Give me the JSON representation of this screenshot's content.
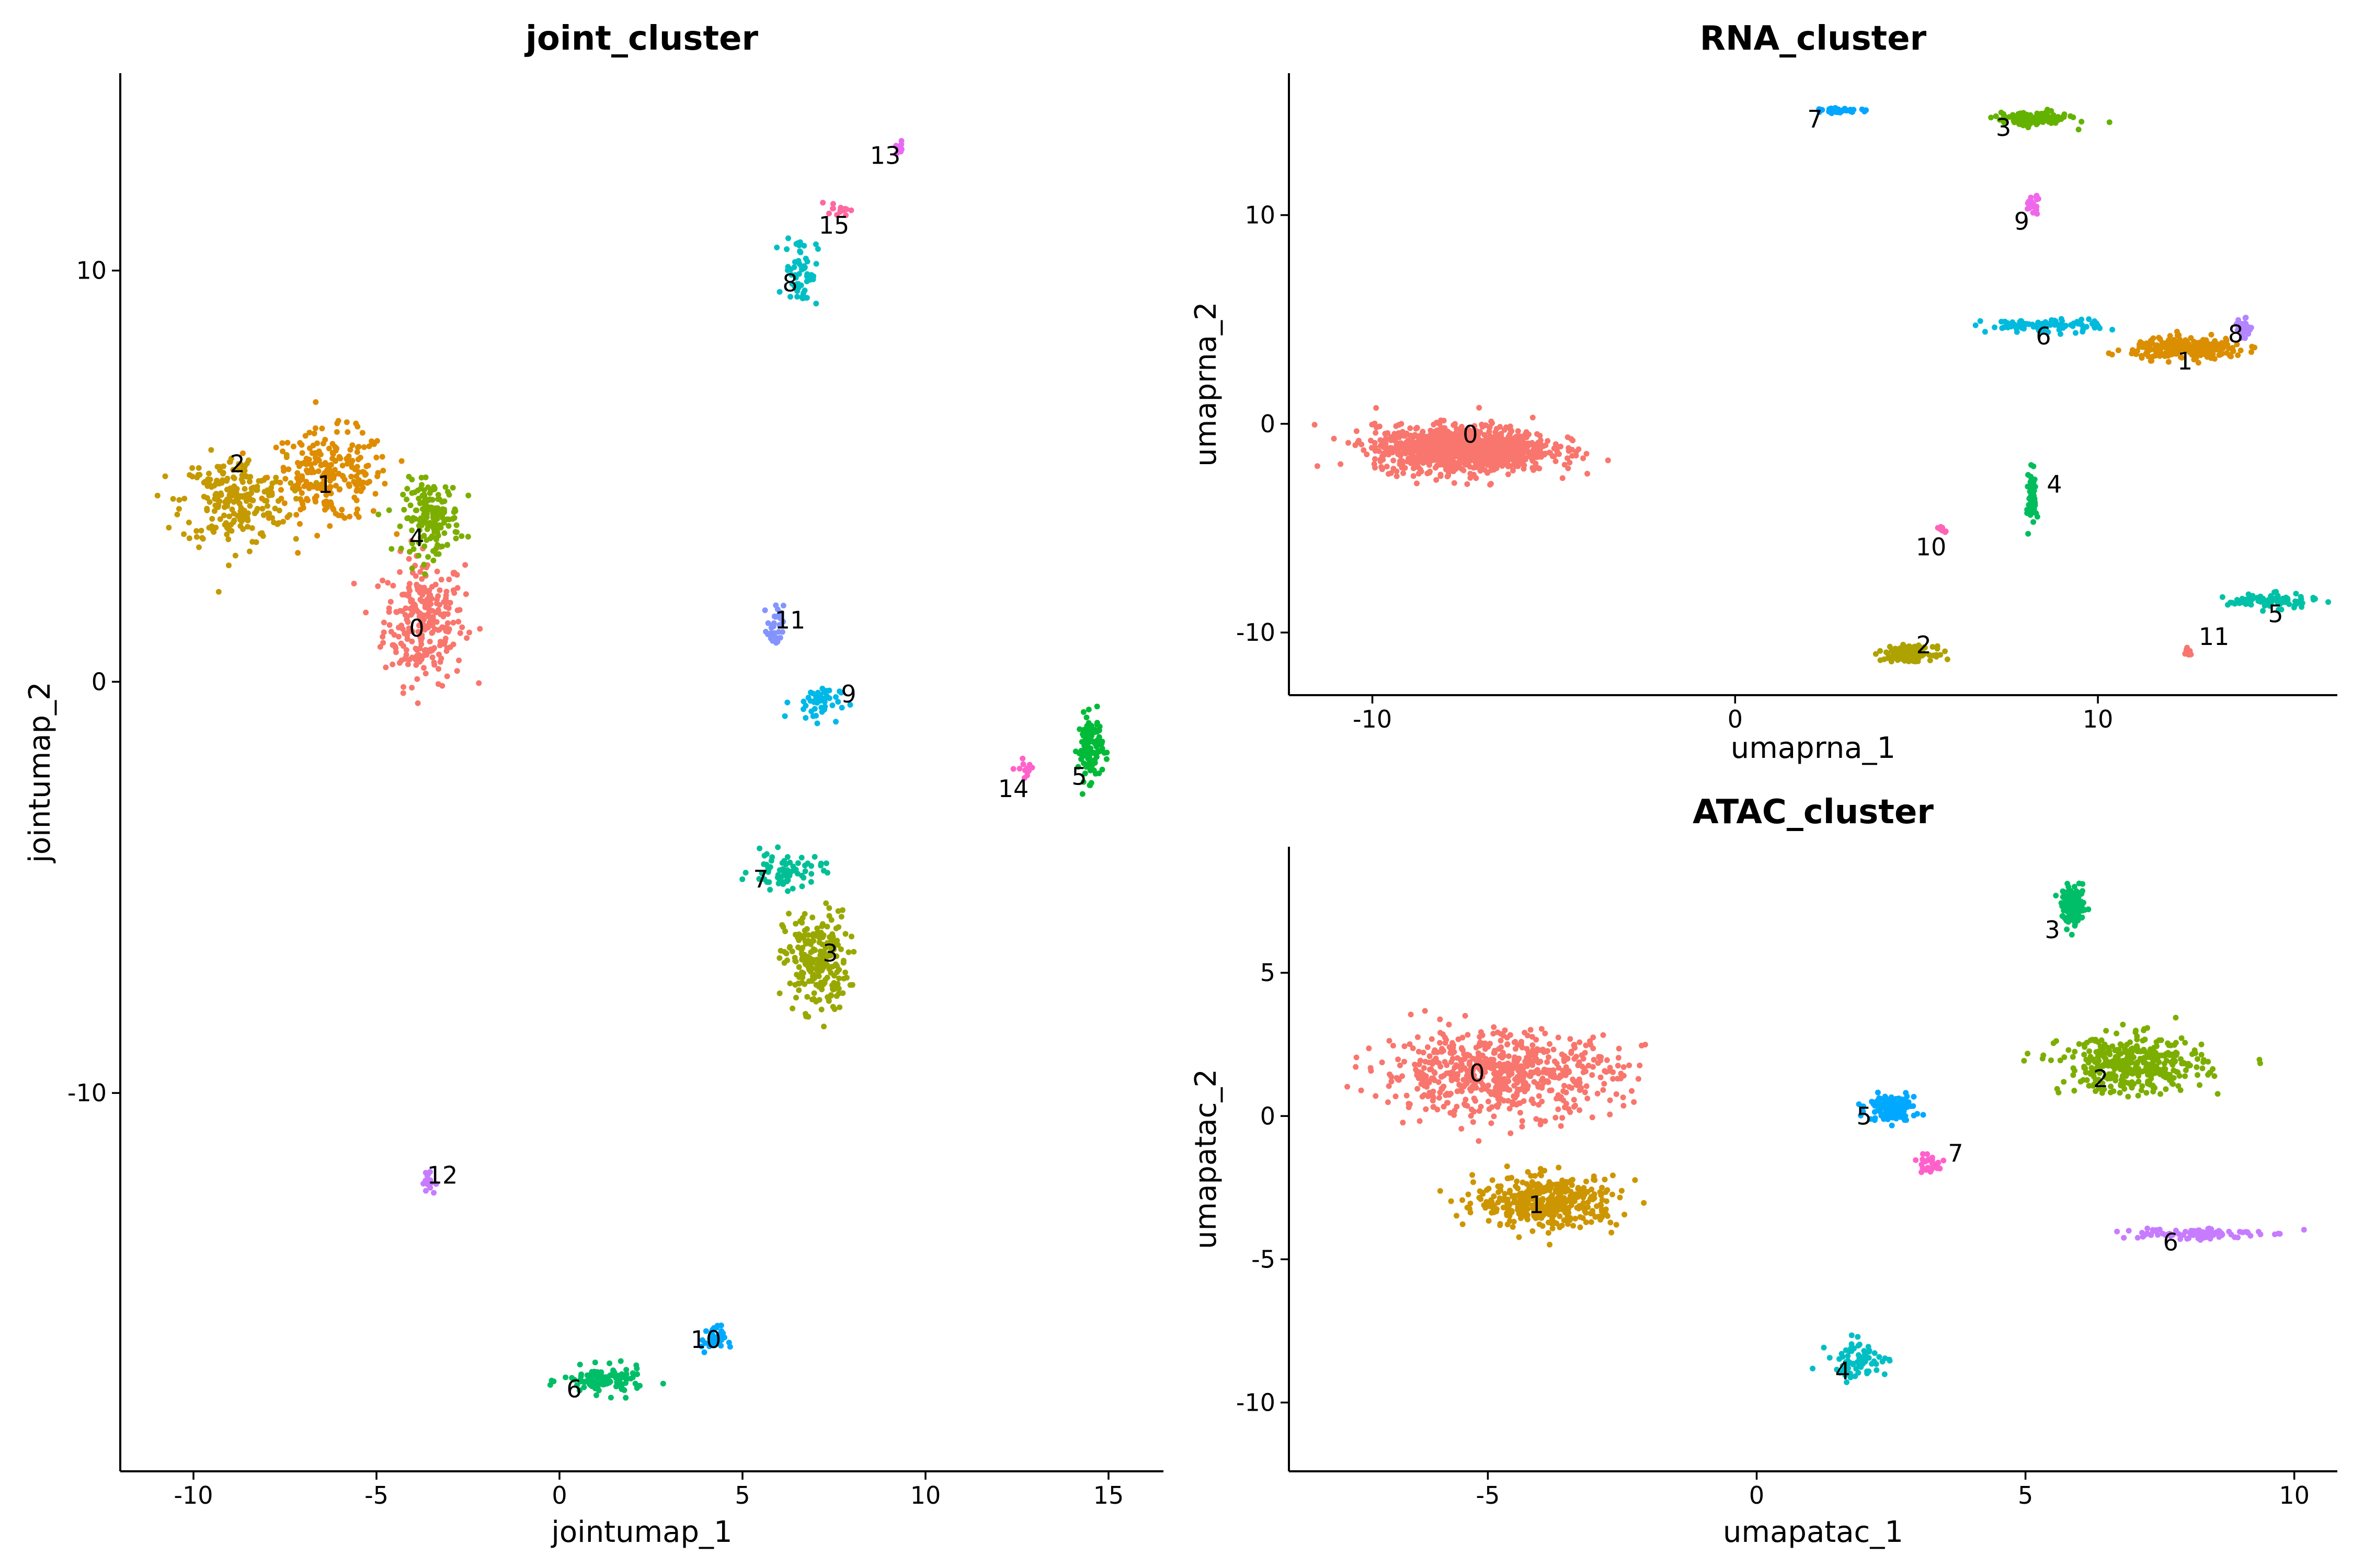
{
  "chart_data": [
    {
      "type": "scatter",
      "title": "joint_cluster",
      "xlabel": "jointumap_1",
      "ylabel": "jointumap_2",
      "xlim": [
        -12,
        16.5
      ],
      "ylim": [
        -19.2,
        14.8
      ],
      "xticks": [
        -10,
        -5,
        0,
        5,
        10,
        15
      ],
      "xtick_labels": [
        "-10",
        "-5",
        "0",
        "5",
        "10",
        "15"
      ],
      "yticks": [
        -10,
        0,
        10
      ],
      "ytick_labels": [
        "-10",
        "0",
        "10"
      ],
      "grid": false,
      "legend": "none",
      "clusters": [
        {
          "label": "0",
          "label_x": -3.9,
          "label_y": 1.3,
          "color": "#F8766D",
          "centroid": [
            -3.7,
            1.5
          ],
          "spread": [
            1.0,
            1.4
          ],
          "count": 260
        },
        {
          "label": "1",
          "label_x": -6.4,
          "label_y": 4.8,
          "color": "#DE8C00",
          "centroid": [
            -6.3,
            5.0
          ],
          "spread": [
            1.5,
            1.0
          ],
          "count": 240
        },
        {
          "label": "2",
          "label_x": -8.8,
          "label_y": 5.3,
          "color": "#C49A00",
          "centroid": [
            -8.9,
            4.4
          ],
          "spread": [
            1.3,
            1.0
          ],
          "count": 220
        },
        {
          "label": "3",
          "label_x": 7.4,
          "label_y": -6.6,
          "color": "#99A800",
          "centroid": [
            7.0,
            -6.8
          ],
          "spread": [
            0.8,
            1.1
          ],
          "count": 230
        },
        {
          "label": "4",
          "label_x": -3.9,
          "label_y": 3.5,
          "color": "#7CAE00",
          "centroid": [
            -3.5,
            4.0
          ],
          "spread": [
            0.7,
            0.8
          ],
          "count": 160
        },
        {
          "label": "5",
          "label_x": 14.2,
          "label_y": -2.3,
          "color": "#00BA38",
          "centroid": [
            14.5,
            -1.6
          ],
          "spread": [
            0.3,
            0.7
          ],
          "count": 120
        },
        {
          "label": "6",
          "label_x": 0.4,
          "label_y": -17.2,
          "color": "#00BE67",
          "centroid": [
            1.2,
            -17.0
          ],
          "spread": [
            1.0,
            0.3
          ],
          "count": 110
        },
        {
          "label": "7",
          "label_x": 5.5,
          "label_y": -4.8,
          "color": "#00BF96",
          "centroid": [
            6.2,
            -4.6
          ],
          "spread": [
            0.9,
            0.4
          ],
          "count": 70
        },
        {
          "label": "8",
          "label_x": 6.3,
          "label_y": 9.7,
          "color": "#00BFC4",
          "centroid": [
            6.6,
            10.0
          ],
          "spread": [
            0.4,
            0.8
          ],
          "count": 60
        },
        {
          "label": "9",
          "label_x": 7.9,
          "label_y": -0.3,
          "color": "#00B8E7",
          "centroid": [
            7.0,
            -0.5
          ],
          "spread": [
            0.6,
            0.4
          ],
          "count": 45
        },
        {
          "label": "10",
          "label_x": 4.0,
          "label_y": -16.0,
          "color": "#00A9FF",
          "centroid": [
            4.2,
            -16.0
          ],
          "spread": [
            0.3,
            0.3
          ],
          "count": 35
        },
        {
          "label": "11",
          "label_x": 6.3,
          "label_y": 1.5,
          "color": "#8494FF",
          "centroid": [
            5.9,
            1.3
          ],
          "spread": [
            0.2,
            0.5
          ],
          "count": 30
        },
        {
          "label": "12",
          "label_x": -3.2,
          "label_y": -12.0,
          "color": "#C77CFF",
          "centroid": [
            -3.6,
            -12.2
          ],
          "spread": [
            0.2,
            0.3
          ],
          "count": 14
        },
        {
          "label": "13",
          "label_x": 8.9,
          "label_y": 12.8,
          "color": "#E76BF3",
          "centroid": [
            9.3,
            13.0
          ],
          "spread": [
            0.1,
            0.2
          ],
          "count": 10
        },
        {
          "label": "14",
          "label_x": 12.4,
          "label_y": -2.6,
          "color": "#FF61CC",
          "centroid": [
            12.8,
            -2.1
          ],
          "spread": [
            0.3,
            0.2
          ],
          "count": 14
        },
        {
          "label": "15",
          "label_x": 7.5,
          "label_y": 11.1,
          "color": "#FF68A1",
          "centroid": [
            7.6,
            11.5
          ],
          "spread": [
            0.3,
            0.15
          ],
          "count": 16
        }
      ]
    },
    {
      "type": "scatter",
      "title": "RNA_cluster",
      "xlabel": "umaprna_1",
      "ylabel": "umaprna_2",
      "xlim": [
        -12.3,
        16.6
      ],
      "ylim": [
        -13.0,
        16.8
      ],
      "xticks": [
        -10,
        0,
        10
      ],
      "xtick_labels": [
        "-10",
        "0",
        "10"
      ],
      "yticks": [
        -10,
        0,
        10
      ],
      "ytick_labels": [
        "-10",
        "0",
        "10"
      ],
      "grid": false,
      "legend": "none",
      "clusters": [
        {
          "label": "0",
          "label_x": -7.3,
          "label_y": -0.5,
          "color": "#F8766D",
          "centroid": [
            -7.5,
            -1.2
          ],
          "spread": [
            2.2,
            1.0
          ],
          "count": 1100
        },
        {
          "label": "1",
          "label_x": 12.4,
          "label_y": 3.0,
          "color": "#DB8E00",
          "centroid": [
            12.5,
            3.6
          ],
          "spread": [
            1.4,
            0.45
          ],
          "count": 260
        },
        {
          "label": "2",
          "label_x": 5.2,
          "label_y": -10.6,
          "color": "#AEA200",
          "centroid": [
            4.8,
            -11.0
          ],
          "spread": [
            0.6,
            0.3
          ],
          "count": 160
        },
        {
          "label": "3",
          "label_x": 7.4,
          "label_y": 14.2,
          "color": "#64B200",
          "centroid": [
            8.2,
            14.6
          ],
          "spread": [
            0.9,
            0.3
          ],
          "count": 140
        },
        {
          "label": "4",
          "label_x": 8.8,
          "label_y": -2.9,
          "color": "#00BD5C",
          "centroid": [
            8.2,
            -3.5
          ],
          "spread": [
            0.1,
            1.2
          ],
          "count": 70
        },
        {
          "label": "5",
          "label_x": 14.9,
          "label_y": -9.1,
          "color": "#00C1A7",
          "centroid": [
            14.8,
            -8.5
          ],
          "spread": [
            1.1,
            0.3
          ],
          "count": 90
        },
        {
          "label": "6",
          "label_x": 8.5,
          "label_y": 4.2,
          "color": "#00BADE",
          "centroid": [
            8.5,
            4.7
          ],
          "spread": [
            1.5,
            0.3
          ],
          "count": 90
        },
        {
          "label": "7",
          "label_x": 2.2,
          "label_y": 14.6,
          "color": "#00A6FF",
          "centroid": [
            2.9,
            15.0
          ],
          "spread": [
            0.5,
            0.1
          ],
          "count": 40
        },
        {
          "label": "8",
          "label_x": 13.8,
          "label_y": 4.3,
          "color": "#B385FF",
          "centroid": [
            14.0,
            4.6
          ],
          "spread": [
            0.2,
            0.4
          ],
          "count": 30
        },
        {
          "label": "9",
          "label_x": 7.9,
          "label_y": 9.7,
          "color": "#EF67EB",
          "centroid": [
            8.2,
            10.5
          ],
          "spread": [
            0.2,
            0.4
          ],
          "count": 20
        },
        {
          "label": "10",
          "label_x": 5.4,
          "label_y": -5.9,
          "color": "#FF63B6",
          "centroid": [
            5.7,
            -5.0
          ],
          "spread": [
            0.2,
            0.15
          ],
          "count": 10
        },
        {
          "label": "11",
          "label_x": 13.2,
          "label_y": -10.2,
          "color": "#F8766D",
          "centroid": [
            12.5,
            -10.9
          ],
          "spread": [
            0.1,
            0.2
          ],
          "count": 10
        }
      ]
    },
    {
      "type": "scatter",
      "title": "ATAC_cluster",
      "xlabel": "umapatac_1",
      "ylabel": "umapatac_2",
      "xlim": [
        -8.7,
        10.8
      ],
      "ylim": [
        -12.4,
        9.4
      ],
      "xticks": [
        -5,
        0,
        5,
        10
      ],
      "xtick_labels": [
        "-5",
        "0",
        "5",
        "10"
      ],
      "yticks": [
        -10,
        -5,
        0,
        5
      ],
      "ytick_labels": [
        "-10",
        "-5",
        "0",
        "5"
      ],
      "grid": false,
      "legend": "none",
      "clusters": [
        {
          "label": "0",
          "label_x": -5.2,
          "label_y": 1.5,
          "color": "#F8766D",
          "centroid": [
            -4.8,
            1.5
          ],
          "spread": [
            2.0,
            1.3
          ],
          "count": 650
        },
        {
          "label": "1",
          "label_x": -4.1,
          "label_y": -3.1,
          "color": "#CD9600",
          "centroid": [
            -3.9,
            -3.0
          ],
          "spread": [
            1.2,
            0.8
          ],
          "count": 420
        },
        {
          "label": "2",
          "label_x": 6.4,
          "label_y": 1.3,
          "color": "#7CAE00",
          "centroid": [
            7.0,
            1.8
          ],
          "spread": [
            1.2,
            0.9
          ],
          "count": 380
        },
        {
          "label": "3",
          "label_x": 5.5,
          "label_y": 6.5,
          "color": "#00BE67",
          "centroid": [
            5.9,
            7.3
          ],
          "spread": [
            0.2,
            0.6
          ],
          "count": 130
        },
        {
          "label": "4",
          "label_x": 1.6,
          "label_y": -8.9,
          "color": "#00BFC4",
          "centroid": [
            1.9,
            -8.5
          ],
          "spread": [
            0.5,
            0.6
          ],
          "count": 70
        },
        {
          "label": "5",
          "label_x": 2.0,
          "label_y": 0.0,
          "color": "#00A9FF",
          "centroid": [
            2.5,
            0.3
          ],
          "spread": [
            0.4,
            0.4
          ],
          "count": 120
        },
        {
          "label": "6",
          "label_x": 7.7,
          "label_y": -4.4,
          "color": "#C77CFF",
          "centroid": [
            8.0,
            -4.1
          ],
          "spread": [
            1.2,
            0.2
          ],
          "count": 90
        },
        {
          "label": "7",
          "label_x": 3.7,
          "label_y": -1.3,
          "color": "#FF61CC",
          "centroid": [
            3.2,
            -1.7
          ],
          "spread": [
            0.3,
            0.3
          ],
          "count": 35
        }
      ]
    }
  ]
}
